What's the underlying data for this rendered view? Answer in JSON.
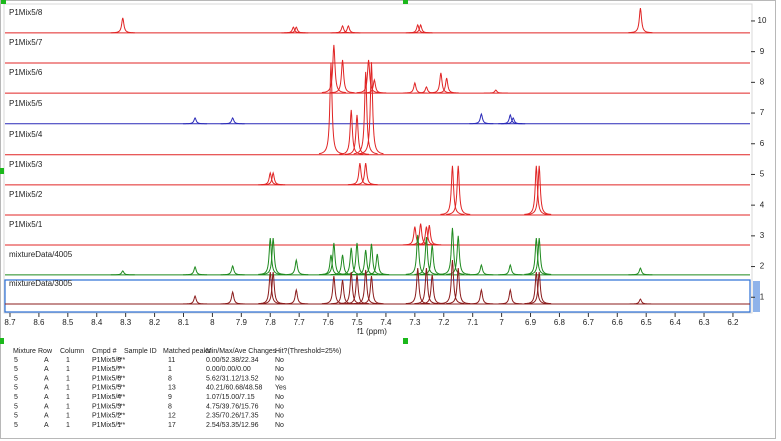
{
  "chart_data": {
    "type": "stacked-spectra",
    "xlabel": "f1 (ppm)",
    "xlim": [
      8.72,
      6.14
    ],
    "ylim": [
      0.5,
      10.5
    ],
    "xticks": [
      8.7,
      8.6,
      8.5,
      8.4,
      8.3,
      8.2,
      8.1,
      8.0,
      7.9,
      7.8,
      7.7,
      7.6,
      7.5,
      7.4,
      7.3,
      7.2,
      7.1,
      7.0,
      6.9,
      6.8,
      6.7,
      6.6,
      6.5,
      6.4,
      6.3,
      6.2
    ],
    "yticks": [
      1,
      2,
      3,
      4,
      5,
      6,
      7,
      8,
      9,
      10
    ],
    "series": [
      {
        "name": "P1Mix5/8",
        "color": "#e02424",
        "baseline": 9.61,
        "peaks": [
          {
            "ppm": 8.31,
            "height": 10.1
          },
          {
            "ppm": 7.72,
            "height": 9.8
          },
          {
            "ppm": 7.71,
            "height": 9.8
          },
          {
            "ppm": 7.55,
            "height": 9.84
          },
          {
            "ppm": 7.53,
            "height": 9.84
          },
          {
            "ppm": 7.29,
            "height": 9.87
          },
          {
            "ppm": 7.28,
            "height": 9.87
          },
          {
            "ppm": 6.52,
            "height": 10.42
          }
        ]
      },
      {
        "name": "P1Mix5/7",
        "color": "#e02424",
        "baseline": 8.63,
        "peaks": []
      },
      {
        "name": "P1Mix5/6",
        "color": "#e02424",
        "baseline": 7.65,
        "peaks": [
          {
            "ppm": 7.58,
            "height": 9.22
          },
          {
            "ppm": 7.55,
            "height": 8.73
          },
          {
            "ppm": 7.46,
            "height": 8.73
          },
          {
            "ppm": 7.44,
            "height": 8.08
          },
          {
            "ppm": 7.3,
            "height": 7.98
          },
          {
            "ppm": 7.26,
            "height": 7.85
          },
          {
            "ppm": 7.21,
            "height": 8.31
          },
          {
            "ppm": 7.19,
            "height": 8.14
          },
          {
            "ppm": 7.02,
            "height": 7.75
          }
        ]
      },
      {
        "name": "P1Mix5/5",
        "color": "#2a2ab8",
        "baseline": 6.65,
        "peaks": [
          {
            "ppm": 8.06,
            "height": 6.84
          },
          {
            "ppm": 7.93,
            "height": 6.84
          },
          {
            "ppm": 7.07,
            "height": 6.97
          },
          {
            "ppm": 6.97,
            "height": 6.94
          },
          {
            "ppm": 6.96,
            "height": 6.84
          }
        ]
      },
      {
        "name": "P1Mix5/4",
        "color": "#e02424",
        "baseline": 5.64,
        "peaks": [
          {
            "ppm": 7.59,
            "height": 8.63
          },
          {
            "ppm": 7.52,
            "height": 7.1
          },
          {
            "ppm": 7.5,
            "height": 6.94
          },
          {
            "ppm": 7.47,
            "height": 8.34
          },
          {
            "ppm": 7.45,
            "height": 8.66
          }
        ]
      },
      {
        "name": "P1Mix5/3",
        "color": "#e02424",
        "baseline": 4.66,
        "peaks": [
          {
            "ppm": 7.8,
            "height": 5.05
          },
          {
            "ppm": 7.79,
            "height": 5.05
          },
          {
            "ppm": 7.49,
            "height": 5.37
          },
          {
            "ppm": 7.47,
            "height": 5.37
          }
        ]
      },
      {
        "name": "P1Mix5/2",
        "color": "#e02424",
        "baseline": 3.68,
        "peaks": [
          {
            "ppm": 7.17,
            "height": 5.28
          },
          {
            "ppm": 7.15,
            "height": 5.28
          },
          {
            "ppm": 6.88,
            "height": 5.28
          },
          {
            "ppm": 6.87,
            "height": 5.28
          }
        ]
      },
      {
        "name": "P1Mix5/1",
        "color": "#e02424",
        "baseline": 2.7,
        "peaks": [
          {
            "ppm": 7.3,
            "height": 3.3
          },
          {
            "ppm": 7.28,
            "height": 3.4
          },
          {
            "ppm": 7.26,
            "height": 3.3
          },
          {
            "ppm": 7.25,
            "height": 3.35
          }
        ]
      },
      {
        "name": "mixtureData/4005",
        "color": "#1f8a1f",
        "baseline": 1.73,
        "peaks": [
          {
            "ppm": 8.31,
            "height": 1.86
          },
          {
            "ppm": 8.06,
            "height": 1.99
          },
          {
            "ppm": 7.93,
            "height": 2.02
          },
          {
            "ppm": 7.8,
            "height": 2.93
          },
          {
            "ppm": 7.79,
            "height": 2.93
          },
          {
            "ppm": 7.71,
            "height": 2.21
          },
          {
            "ppm": 7.59,
            "height": 2.38
          },
          {
            "ppm": 7.58,
            "height": 2.77
          },
          {
            "ppm": 7.55,
            "height": 2.38
          },
          {
            "ppm": 7.52,
            "height": 2.61
          },
          {
            "ppm": 7.5,
            "height": 2.77
          },
          {
            "ppm": 7.47,
            "height": 2.54
          },
          {
            "ppm": 7.45,
            "height": 2.74
          },
          {
            "ppm": 7.43,
            "height": 2.41
          },
          {
            "ppm": 7.29,
            "height": 3.03
          },
          {
            "ppm": 7.26,
            "height": 2.96
          },
          {
            "ppm": 7.24,
            "height": 2.7
          },
          {
            "ppm": 7.17,
            "height": 3.26
          },
          {
            "ppm": 7.15,
            "height": 3.0
          },
          {
            "ppm": 7.07,
            "height": 2.05
          },
          {
            "ppm": 6.97,
            "height": 2.05
          },
          {
            "ppm": 6.88,
            "height": 2.93
          },
          {
            "ppm": 6.87,
            "height": 2.93
          },
          {
            "ppm": 6.52,
            "height": 1.95
          }
        ]
      },
      {
        "name": "mixtureData/3005",
        "color": "#8b1c1c",
        "baseline": 0.78,
        "peaks": [
          {
            "ppm": 8.06,
            "height": 1.04
          },
          {
            "ppm": 7.93,
            "height": 1.17
          },
          {
            "ppm": 7.8,
            "height": 1.82
          },
          {
            "ppm": 7.79,
            "height": 1.82
          },
          {
            "ppm": 7.71,
            "height": 1.24
          },
          {
            "ppm": 7.58,
            "height": 1.69
          },
          {
            "ppm": 7.55,
            "height": 1.56
          },
          {
            "ppm": 7.52,
            "height": 1.82
          },
          {
            "ppm": 7.5,
            "height": 1.73
          },
          {
            "ppm": 7.47,
            "height": 1.89
          },
          {
            "ppm": 7.45,
            "height": 1.69
          },
          {
            "ppm": 7.29,
            "height": 1.95
          },
          {
            "ppm": 7.26,
            "height": 1.95
          },
          {
            "ppm": 7.24,
            "height": 1.73
          },
          {
            "ppm": 7.17,
            "height": 2.21
          },
          {
            "ppm": 7.15,
            "height": 1.95
          },
          {
            "ppm": 7.07,
            "height": 1.24
          },
          {
            "ppm": 6.97,
            "height": 1.24
          },
          {
            "ppm": 6.88,
            "height": 1.82
          },
          {
            "ppm": 6.87,
            "height": 1.82
          },
          {
            "ppm": 6.52,
            "height": 0.94
          }
        ]
      }
    ]
  },
  "table": {
    "header": [
      "Mixture",
      "Row",
      "Column",
      "Cmpd #",
      "Sample ID",
      "Matched peaks",
      "Min/Max/Ave Changes",
      "Hit?(Threshold=25%)"
    ],
    "rows": [
      [
        "5",
        "A",
        "1",
        "P1Mix5/8",
        "***",
        "11",
        "0.00/52.38/22.34",
        "No"
      ],
      [
        "5",
        "A",
        "1",
        "P1Mix5/7",
        "***",
        "1",
        "0.00/0.00/0.00",
        "No"
      ],
      [
        "5",
        "A",
        "1",
        "P1Mix5/6",
        "***",
        "8",
        "5.62/31.12/13.52",
        "No"
      ],
      [
        "5",
        "A",
        "1",
        "P1Mix5/5",
        "***",
        "13",
        "40.21/60.68/48.58",
        "Yes"
      ],
      [
        "5",
        "A",
        "1",
        "P1Mix5/4",
        "***",
        "9",
        "1.07/15.00/7.15",
        "No"
      ],
      [
        "5",
        "A",
        "1",
        "P1Mix5/3",
        "***",
        "8",
        "4.75/39.76/15.76",
        "No"
      ],
      [
        "5",
        "A",
        "1",
        "P1Mix5/2",
        "***",
        "12",
        "2.35/70.26/17.35",
        "No"
      ],
      [
        "5",
        "A",
        "1",
        "P1Mix5/1",
        "***",
        "17",
        "2.54/53.35/12.96",
        "No"
      ]
    ]
  }
}
